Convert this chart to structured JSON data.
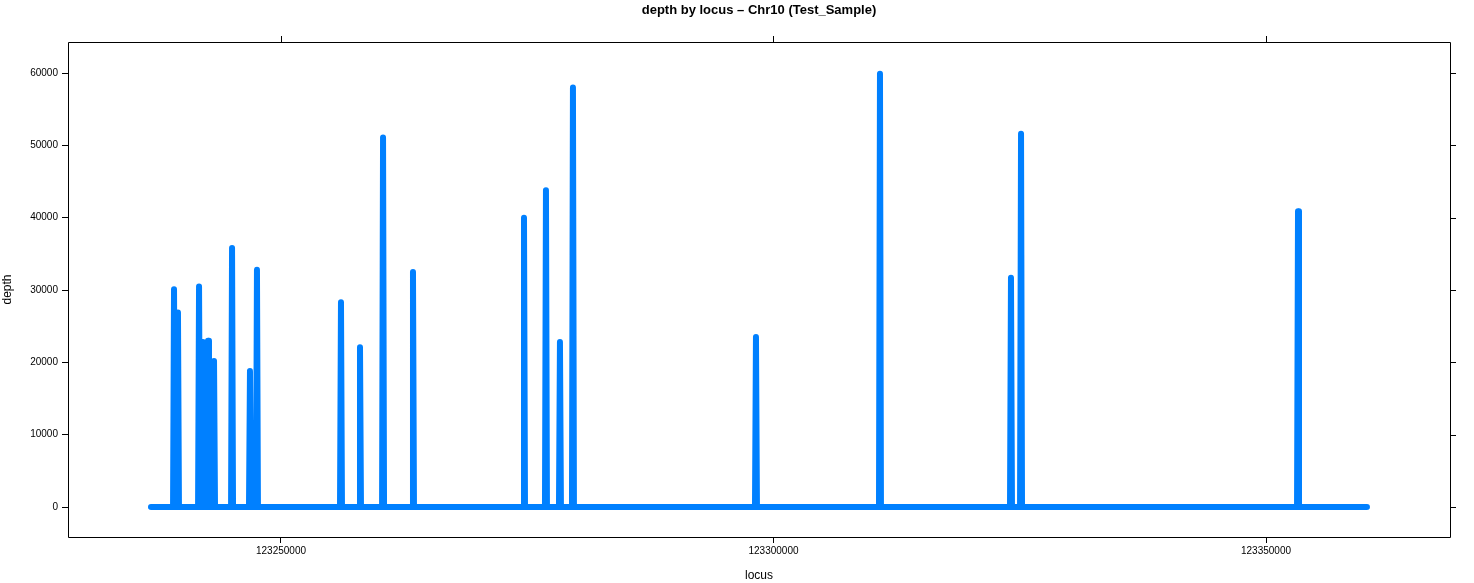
{
  "chart_data": {
    "type": "line",
    "title": "depth by locus – Chr10 (Test_Sample)",
    "xlabel": "locus",
    "ylabel": "depth",
    "xlim": [
      123228376,
      123368680
    ],
    "ylim": [
      -4147,
      64286
    ],
    "xticks": [
      123250000,
      123300000,
      123350000
    ],
    "yticks": [
      0,
      10000,
      20000,
      30000,
      40000,
      50000,
      60000
    ],
    "grid": false,
    "legend": false,
    "line_style": "solid",
    "marker": "none",
    "series": [
      {
        "color": "#0080ff",
        "x": [
          123236800,
          123239040,
          123239140,
          123239240,
          123239440,
          123239540,
          123239640,
          123241580,
          123241680,
          123241780,
          123241980,
          123242080,
          123242180,
          123242490,
          123242590,
          123242690,
          123243100,
          123243200,
          123243300,
          123244930,
          123245030,
          123245130,
          123246750,
          123246850,
          123246950,
          123247460,
          123247560,
          123247660,
          123255990,
          123256090,
          123256190,
          123257920,
          123258020,
          123258120,
          123260260,
          123260360,
          123260460,
          123263300,
          123263400,
          123263500,
          123274570,
          123274670,
          123274770,
          123276800,
          123276900,
          123277000,
          123278220,
          123278320,
          123278420,
          123279540,
          123279640,
          123279740,
          123298120,
          123298220,
          123298320,
          123310710,
          123310810,
          123310910,
          123324010,
          123324110,
          123324210,
          123325030,
          123325130,
          123325230,
          123353150,
          123353250,
          123353350,
          123360250
        ],
        "values": [
          0,
          0,
          30100,
          0,
          0,
          26900,
          0,
          0,
          30500,
          0,
          0,
          22800,
          0,
          0,
          23000,
          0,
          0,
          20200,
          0,
          0,
          35800,
          0,
          0,
          18800,
          0,
          0,
          32800,
          0,
          0,
          28300,
          0,
          0,
          22100,
          0,
          0,
          51100,
          0,
          0,
          32500,
          0,
          0,
          40000,
          0,
          0,
          43800,
          0,
          0,
          22800,
          0,
          0,
          58000,
          0,
          0,
          23500,
          0,
          0,
          59900,
          0,
          0,
          31700,
          0,
          0,
          51600,
          0,
          0,
          40900,
          0,
          0
        ]
      }
    ]
  }
}
